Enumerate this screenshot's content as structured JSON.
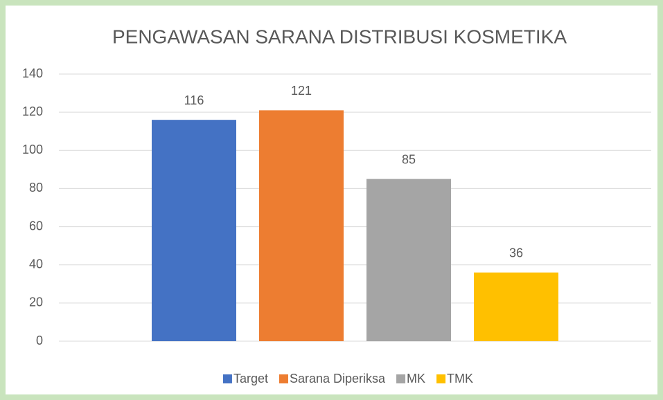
{
  "chart_data": {
    "type": "bar",
    "title": "PENGAWASAN SARANA DISTRIBUSI KOSMETIKA",
    "categories": [
      null
    ],
    "series": [
      {
        "name": "Target",
        "color": "#4472c4",
        "values": [
          116
        ]
      },
      {
        "name": "Sarana Diperiksa",
        "color": "#ed7d31",
        "values": [
          121
        ]
      },
      {
        "name": "MK",
        "color": "#a5a5a5",
        "values": [
          85
        ]
      },
      {
        "name": "TMK",
        "color": "#ffc000",
        "values": [
          36
        ]
      }
    ],
    "ylim": [
      0,
      140
    ],
    "yticks": [
      0,
      20,
      40,
      60,
      80,
      100,
      120,
      140
    ],
    "grid": true,
    "legend": "bottom"
  }
}
